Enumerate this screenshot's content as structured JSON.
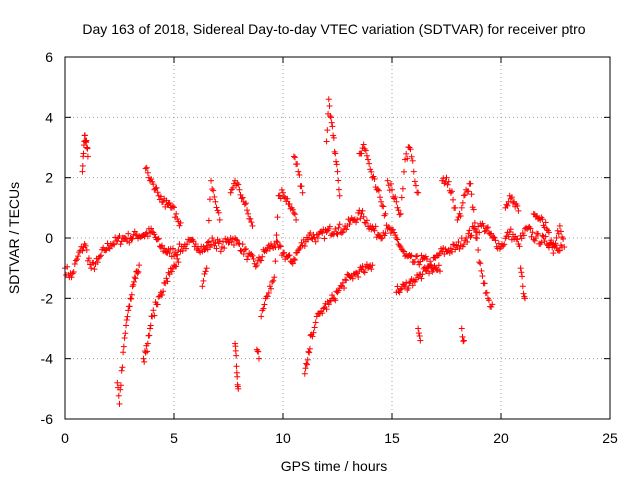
{
  "chart_data": {
    "type": "scatter",
    "title": "Day 163 of 2018, Sidereal Day-to-day VTEC variation (SDTVAR) for receiver ptro",
    "xlabel": "GPS time / hours",
    "ylabel": "SDTVAR / TECUs",
    "xlim": [
      0,
      25
    ],
    "ylim": [
      -6,
      6
    ],
    "xticks": [
      0,
      5,
      10,
      15,
      20,
      25
    ],
    "yticks": [
      -6,
      -4,
      -2,
      0,
      2,
      4,
      6
    ],
    "xtick_labels": [
      "0",
      "5",
      "10",
      "15",
      "20",
      "25"
    ],
    "ytick_labels": [
      "-6",
      "-4",
      "-2",
      "0",
      "2",
      "4",
      "6"
    ],
    "grid": true,
    "marker": "+",
    "series_color": "#ff0000",
    "series": [
      {
        "name": "SDTVAR",
        "segments": [
          {
            "x": [
              0.0,
              0.3,
              0.6,
              0.9,
              1.2,
              1.5,
              1.8,
              2.1,
              2.4,
              2.7,
              3.0,
              3.3,
              3.6,
              4.0,
              4.4,
              4.8,
              5.2,
              5.6,
              6.0,
              6.4,
              6.8,
              7.2,
              7.6,
              8.0,
              8.4,
              8.8,
              9.2,
              9.6,
              10.0,
              10.4,
              10.8,
              11.2,
              11.6,
              12.0,
              12.4,
              12.8,
              13.2,
              13.6,
              14.0,
              14.4,
              14.8,
              15.2,
              15.6,
              16.0,
              16.4,
              16.8,
              17.2,
              17.6,
              18.0,
              18.4,
              18.8,
              19.2,
              19.6,
              20.0,
              20.4,
              20.8,
              21.2,
              21.6,
              22.0,
              22.4,
              22.8
            ],
            "y": [
              -1.0,
              -1.3,
              -0.6,
              -0.2,
              -1.0,
              -0.8,
              -0.4,
              -0.2,
              -0.1,
              0.0,
              0.0,
              0.1,
              0.1,
              0.2,
              -0.3,
              -0.5,
              -0.4,
              -0.2,
              -0.2,
              -0.4,
              -0.1,
              -0.3,
              0.0,
              -0.2,
              -0.6,
              -0.9,
              -0.4,
              -0.2,
              -0.5,
              -0.8,
              -0.3,
              0.1,
              0.0,
              0.2,
              0.3,
              0.3,
              0.6,
              0.8,
              0.4,
              0.1,
              0.3,
              0.0,
              -0.6,
              -0.8,
              -0.7,
              -0.9,
              -0.5,
              -0.4,
              -0.3,
              0.0,
              0.3,
              0.4,
              0.0,
              -0.3,
              0.2,
              -0.2,
              0.3,
              0.0,
              -0.1,
              -0.2,
              -0.3
            ]
          },
          {
            "x": [
              0.8,
              0.85,
              0.9,
              0.95,
              1.0,
              1.05
            ],
            "y": [
              2.2,
              2.8,
              3.4,
              3.2,
              3.0,
              2.7
            ]
          },
          {
            "x": [
              2.4,
              2.5,
              2.6,
              2.7,
              2.8,
              2.9,
              3.0,
              3.1,
              3.2,
              3.3,
              3.4
            ],
            "y": [
              -4.8,
              -5.5,
              -4.4,
              -3.6,
              -2.9,
              -2.4,
              -2.0,
              -1.6,
              -1.3,
              -1.1,
              -0.9
            ]
          },
          {
            "x": [
              3.6,
              3.7,
              3.8,
              3.9,
              4.0,
              4.2,
              4.4,
              4.6,
              4.8,
              5.0,
              5.2
            ],
            "y": [
              -4.0,
              -3.8,
              -3.5,
              -3.0,
              -2.6,
              -2.2,
              -1.8,
              -1.5,
              -1.2,
              -0.9,
              -0.8
            ]
          },
          {
            "x": [
              3.7,
              3.9,
              4.1,
              4.3,
              4.5,
              4.7,
              4.9,
              5.1,
              5.3
            ],
            "y": [
              2.3,
              1.9,
              1.6,
              1.4,
              1.2,
              1.1,
              1.0,
              0.8,
              0.5
            ]
          },
          {
            "x": [
              6.3,
              6.5,
              6.7,
              6.9,
              7.1
            ],
            "y": [
              -1.6,
              -1.0,
              1.9,
              1.2,
              0.6
            ]
          },
          {
            "x": [
              7.6,
              7.8,
              8.0,
              8.2,
              8.4,
              8.6
            ],
            "y": [
              1.5,
              1.9,
              1.6,
              1.2,
              0.8,
              0.4
            ]
          },
          {
            "x": [
              7.8,
              7.85,
              7.9,
              7.95
            ],
            "y": [
              -3.5,
              -3.9,
              -4.6,
              -5.0
            ]
          },
          {
            "x": [
              8.8,
              8.9
            ],
            "y": [
              -3.7,
              -4.0
            ]
          },
          {
            "x": [
              9.0,
              9.2,
              9.4,
              9.6,
              9.8,
              10.0,
              10.2,
              10.4,
              10.6
            ],
            "y": [
              -2.6,
              -2.0,
              -1.6,
              -1.3,
              1.4,
              1.5,
              1.3,
              1.0,
              0.6
            ]
          },
          {
            "x": [
              10.5,
              10.7,
              10.9
            ],
            "y": [
              2.7,
              2.2,
              1.5
            ]
          },
          {
            "x": [
              11.0,
              11.1,
              11.2,
              11.3,
              11.5,
              11.7,
              11.9,
              12.1,
              12.3,
              12.5,
              12.7,
              12.9,
              13.1,
              13.3,
              13.5,
              13.7,
              13.9,
              14.1
            ],
            "y": [
              -4.5,
              -4.2,
              -3.8,
              -3.2,
              -2.8,
              -2.5,
              -2.3,
              -2.2,
              -2.0,
              -1.8,
              -1.6,
              -1.4,
              -1.3,
              -1.2,
              -1.1,
              -1.1,
              -1.0,
              -0.9
            ]
          },
          {
            "x": [
              12.0,
              12.1,
              12.2,
              12.3,
              12.4,
              12.5,
              12.6
            ],
            "y": [
              3.2,
              4.6,
              4.0,
              3.4,
              2.8,
              2.2,
              1.4
            ]
          },
          {
            "x": [
              13.5,
              13.7,
              13.9,
              14.1,
              14.3,
              14.5,
              14.7
            ],
            "y": [
              2.8,
              3.1,
              2.6,
              2.0,
              1.6,
              1.2,
              0.8
            ]
          },
          {
            "x": [
              14.8,
              15.0,
              15.2,
              15.4,
              15.6,
              15.8,
              16.0,
              16.2
            ],
            "y": [
              1.9,
              1.6,
              1.2,
              0.8,
              2.6,
              3.0,
              2.2,
              1.5
            ]
          },
          {
            "x": [
              15.2,
              15.4,
              15.6,
              15.8,
              16.0,
              16.2,
              16.4,
              16.6,
              16.8,
              17.0,
              17.2
            ],
            "y": [
              -1.8,
              -1.7,
              -1.6,
              -1.5,
              -1.4,
              -1.3,
              -1.2,
              -1.1,
              -1.0,
              -1.0,
              -1.1
            ]
          },
          {
            "x": [
              16.2,
              16.3
            ],
            "y": [
              -3.0,
              -3.4
            ]
          },
          {
            "x": [
              17.3,
              17.5,
              17.7,
              17.9
            ],
            "y": [
              1.9,
              2.0,
              1.5,
              1.0
            ]
          },
          {
            "x": [
              18.0,
              18.2,
              18.4,
              18.6,
              18.8,
              19.0,
              19.2,
              19.4,
              19.6
            ],
            "y": [
              0.6,
              1.0,
              1.6,
              1.8,
              0.5,
              -0.8,
              -1.5,
              -2.0,
              -2.2
            ]
          },
          {
            "x": [
              18.2,
              18.3
            ],
            "y": [
              -3.0,
              -3.4
            ]
          },
          {
            "x": [
              20.2,
              20.4,
              20.6,
              20.8
            ],
            "y": [
              1.0,
              1.4,
              1.2,
              0.9
            ]
          },
          {
            "x": [
              20.9,
              21.0,
              21.1
            ],
            "y": [
              -1.0,
              -1.6,
              -2.0
            ]
          },
          {
            "x": [
              21.5,
              21.8,
              22.1,
              22.4,
              22.7,
              22.9
            ],
            "y": [
              0.8,
              0.6,
              0.3,
              -0.5,
              0.4,
              -0.3
            ]
          }
        ]
      }
    ]
  }
}
